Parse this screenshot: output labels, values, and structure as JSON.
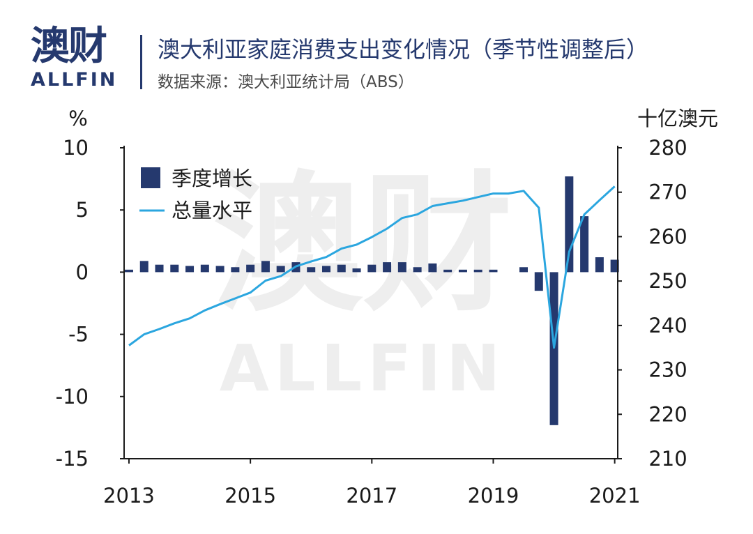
{
  "logo": {
    "cn": "澳财",
    "en": "ALLFIN"
  },
  "header": {
    "title": "澳大利亚家庭消费支出变化情况（季节性调整后）",
    "subtitle": "数据来源：澳大利亚统计局（ABS）"
  },
  "watermark": {
    "cn": "澳财",
    "en": "ALLFIN"
  },
  "colors": {
    "bar": "#25396e",
    "line": "#2ba6df",
    "brand": "#25396e"
  },
  "chart_data": {
    "type": "bar+line",
    "left_axis": {
      "label": "%",
      "ylim": [
        -15,
        10
      ],
      "ticks": [
        "10",
        "5",
        "0",
        "-5",
        "-10",
        "-15"
      ]
    },
    "right_axis": {
      "label": "十亿澳元",
      "ylim": [
        210,
        280
      ],
      "ticks": [
        "280",
        "270",
        "260",
        "250",
        "240",
        "230",
        "220",
        "210"
      ]
    },
    "x_tick_labels": [
      "2013",
      "2015",
      "2017",
      "2019",
      "2021"
    ],
    "x_tick_positions": [
      2013,
      2015,
      2017,
      2019,
      2021
    ],
    "xlim": [
      2012.92,
      2021.05
    ],
    "legend": {
      "position": "top-left",
      "bar_label": "季度增长",
      "line_label": "总量水平"
    },
    "series": [
      {
        "name": "季度增长",
        "type": "bar",
        "x": [
          2013.0,
          2013.25,
          2013.5,
          2013.75,
          2014.0,
          2014.25,
          2014.5,
          2014.75,
          2015.0,
          2015.25,
          2015.5,
          2015.75,
          2016.0,
          2016.25,
          2016.5,
          2016.75,
          2017.0,
          2017.25,
          2017.5,
          2017.75,
          2018.0,
          2018.25,
          2018.5,
          2018.75,
          2019.0,
          2019.25,
          2019.5,
          2019.75,
          2020.0,
          2020.25,
          2020.5,
          2020.75,
          2021.0
        ],
        "values": [
          0.2,
          0.9,
          0.6,
          0.6,
          0.5,
          0.6,
          0.5,
          0.4,
          0.6,
          0.9,
          0.5,
          0.8,
          0.4,
          0.5,
          0.6,
          0.3,
          0.6,
          0.8,
          0.8,
          0.4,
          0.7,
          0.2,
          0.2,
          0.2,
          0.2,
          0.0,
          0.4,
          -1.5,
          -12.3,
          7.7,
          4.5,
          1.2,
          1.0
        ]
      },
      {
        "name": "总量水平",
        "type": "line",
        "x": [
          2013.0,
          2013.25,
          2013.5,
          2013.75,
          2014.0,
          2014.25,
          2014.5,
          2014.75,
          2015.0,
          2015.25,
          2015.5,
          2015.75,
          2016.0,
          2016.25,
          2016.5,
          2016.75,
          2017.0,
          2017.25,
          2017.5,
          2017.75,
          2018.0,
          2018.25,
          2018.5,
          2018.75,
          2019.0,
          2019.25,
          2019.5,
          2019.75,
          2020.0,
          2020.25,
          2020.5,
          2020.75,
          2021.0
        ],
        "values": [
          235.5,
          238.0,
          239.2,
          240.5,
          241.6,
          243.4,
          244.8,
          246.1,
          247.4,
          250.1,
          251.1,
          253.3,
          254.4,
          255.4,
          257.3,
          258.2,
          259.9,
          261.8,
          264.2,
          265.0,
          266.9,
          267.5,
          268.1,
          268.9,
          269.7,
          269.7,
          270.3,
          266.5,
          235.0,
          256.6,
          265.0,
          268.2,
          271.3
        ]
      }
    ]
  }
}
